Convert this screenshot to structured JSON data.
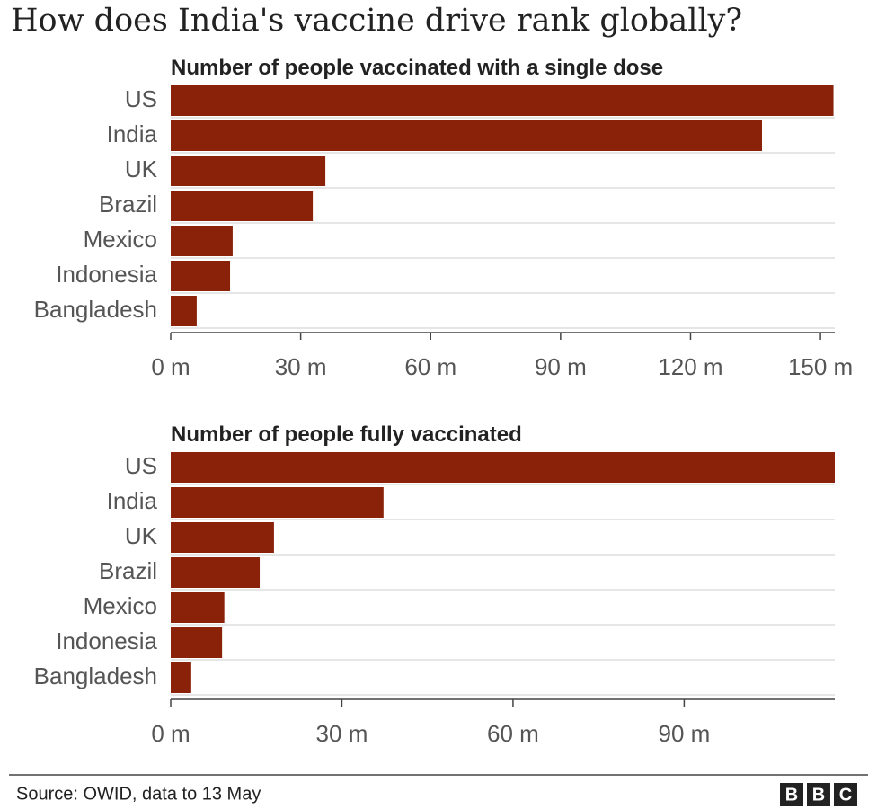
{
  "title": "How does India's vaccine drive rank globally?",
  "source": "Source: OWID, data to 13 May",
  "logo": [
    "B",
    "B",
    "C"
  ],
  "chart_data": [
    {
      "type": "bar",
      "title": "Number of people vaccinated with a single dose",
      "categories": [
        "US",
        "India",
        "UK",
        "Brazil",
        "Mexico",
        "Indonesia",
        "Bangladesh"
      ],
      "values": [
        153,
        136.5,
        35.7,
        32.8,
        14.3,
        13.7,
        6.0
      ],
      "color": "#8a2209",
      "xlim": [
        0,
        153.3
      ],
      "xticks": [
        {
          "value": 0,
          "label": "0 m"
        },
        {
          "value": 30,
          "label": "30 m"
        },
        {
          "value": 60,
          "label": "60 m"
        },
        {
          "value": 90,
          "label": "90 m"
        },
        {
          "value": 120,
          "label": "120 m"
        },
        {
          "value": 150,
          "label": "150 m"
        }
      ]
    },
    {
      "type": "bar",
      "title": "Number of people fully  vaccinated",
      "categories": [
        "US",
        "India",
        "UK",
        "Brazil",
        "Mexico",
        "Indonesia",
        "Bangladesh"
      ],
      "values": [
        116.4,
        37.3,
        18.1,
        15.6,
        9.4,
        9.0,
        3.6
      ],
      "color": "#8a2209",
      "xlim": [
        0,
        116.4
      ],
      "xticks": [
        {
          "value": 0,
          "label": "0 m"
        },
        {
          "value": 30,
          "label": "30 m"
        },
        {
          "value": 60,
          "label": "60 m"
        },
        {
          "value": 90,
          "label": "90 m"
        }
      ]
    }
  ]
}
